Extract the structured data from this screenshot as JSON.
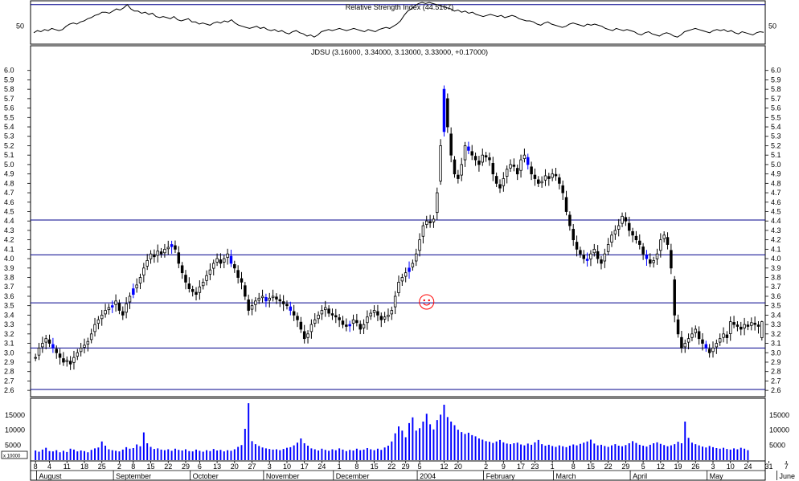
{
  "chart_data": {
    "type": "candlestick",
    "symbol": "JDSU",
    "title": "JDSU (3.16000, 3.34000, 3.13000, 3.33000, +0.17000)",
    "last_bar": {
      "open": 3.16,
      "high": 3.34,
      "low": 3.13,
      "close": 3.33,
      "change": 0.17
    },
    "colors": {
      "up": "#ffffff",
      "down": "#000000",
      "highlight": "#0000ff",
      "trendline": "#00008b",
      "smiley": "#ff0000",
      "volume": "#0000ff"
    },
    "rsi_panel": {
      "title": "Relative Strength Index (44.5167)",
      "value": 44.5167,
      "ref_label": "50",
      "ref_levels": [
        50,
        70
      ],
      "ylim": [
        35,
        72
      ],
      "series": [
        44,
        46,
        45,
        47,
        46,
        48,
        47,
        46,
        47,
        50,
        52,
        53,
        52,
        54,
        55,
        57,
        58,
        60,
        61,
        63,
        63,
        62,
        64,
        66,
        65,
        67,
        70,
        66,
        64,
        64,
        62,
        63,
        61,
        62,
        59,
        58,
        59,
        58,
        57,
        59,
        56,
        55,
        56,
        57,
        54,
        54,
        52,
        53,
        52,
        51,
        53,
        54,
        53,
        55,
        54,
        56,
        53,
        51,
        50,
        49,
        48,
        49,
        50,
        48,
        49,
        47,
        46,
        47,
        45,
        46,
        44,
        43,
        45,
        46,
        44,
        43,
        41,
        42,
        40,
        42,
        45,
        46,
        47,
        46,
        47,
        48,
        47,
        46,
        47,
        48,
        47,
        46,
        45,
        47,
        46,
        45,
        47,
        48,
        49,
        48,
        50,
        52,
        55,
        60,
        64,
        66,
        69,
        71,
        72,
        71,
        72,
        71,
        70,
        69,
        68,
        67,
        66,
        64,
        65,
        63,
        64,
        62,
        63,
        61,
        60,
        59,
        60,
        61,
        60,
        59,
        60,
        58,
        59,
        60,
        59,
        57,
        56,
        55,
        55,
        54,
        52,
        51,
        53,
        54,
        52,
        51,
        50,
        49,
        50,
        52,
        53,
        52,
        51,
        50,
        52,
        51,
        52,
        51,
        50,
        48,
        47,
        46,
        48,
        47,
        46,
        47,
        46,
        45,
        43,
        42,
        44,
        45,
        43,
        42,
        41,
        43,
        44,
        43,
        41,
        40,
        42,
        45,
        46,
        47,
        48,
        47,
        46,
        45,
        44,
        46,
        47,
        46,
        47,
        45,
        46,
        44,
        43,
        45,
        44,
        43,
        42,
        44,
        45,
        44.5
      ]
    },
    "price_panel": {
      "ylim": [
        2.55,
        6.1
      ],
      "y_ticks": [
        "2.6",
        "2.7",
        "2.8",
        "2.9",
        "3.0",
        "3.1",
        "3.2",
        "3.3",
        "3.4",
        "3.5",
        "3.6",
        "3.7",
        "3.8",
        "3.9",
        "4.0",
        "4.1",
        "4.2",
        "4.3",
        "4.4",
        "4.5",
        "4.6",
        "4.7",
        "4.8",
        "4.9",
        "5.0",
        "5.1",
        "5.2",
        "5.3",
        "5.4",
        "5.5",
        "5.6",
        "5.7",
        "5.8",
        "5.9",
        "6.0"
      ],
      "support_resistance_lines": [
        2.61,
        3.05,
        3.53,
        4.04,
        4.41
      ],
      "smiley_markers": [
        {
          "index": 112,
          "price": 3.54
        },
        {
          "index": 221,
          "price": 3.54
        }
      ],
      "closes": [
        2.95,
        3.05,
        3.1,
        3.15,
        3.1,
        3.05,
        3.0,
        2.95,
        2.9,
        2.92,
        2.88,
        2.95,
        3.0,
        3.05,
        3.08,
        3.12,
        3.2,
        3.3,
        3.35,
        3.4,
        3.45,
        3.48,
        3.5,
        3.55,
        3.45,
        3.4,
        3.52,
        3.6,
        3.68,
        3.72,
        3.8,
        3.9,
        3.98,
        4.05,
        4.02,
        4.08,
        4.05,
        4.1,
        4.12,
        4.15,
        4.1,
        3.95,
        3.85,
        3.75,
        3.68,
        3.65,
        3.62,
        3.7,
        3.75,
        3.82,
        3.88,
        3.95,
        4.0,
        3.95,
        4.0,
        4.05,
        3.95,
        3.9,
        3.8,
        3.75,
        3.6,
        3.45,
        3.5,
        3.55,
        3.58,
        3.6,
        3.55,
        3.58,
        3.6,
        3.57,
        3.55,
        3.52,
        3.5,
        3.45,
        3.4,
        3.35,
        3.25,
        3.15,
        3.2,
        3.3,
        3.35,
        3.4,
        3.45,
        3.48,
        3.42,
        3.4,
        3.38,
        3.35,
        3.3,
        3.28,
        3.3,
        3.35,
        3.32,
        3.25,
        3.3,
        3.38,
        3.42,
        3.45,
        3.4,
        3.35,
        3.38,
        3.4,
        3.45,
        3.6,
        3.75,
        3.8,
        3.85,
        3.9,
        3.95,
        4.05,
        4.2,
        4.35,
        4.4,
        4.38,
        4.42,
        4.7,
        5.2,
        5.8,
        5.4,
        5.1,
        4.9,
        4.85,
        5.0,
        5.2,
        5.15,
        5.1,
        5.05,
        5.0,
        5.1,
        5.08,
        5.05,
        4.9,
        4.8,
        4.75,
        4.85,
        4.95,
        5.0,
        4.98,
        4.9,
        5.05,
        5.1,
        5.0,
        4.9,
        4.85,
        4.8,
        4.82,
        4.88,
        4.85,
        4.9,
        4.88,
        4.8,
        4.7,
        4.5,
        4.35,
        4.2,
        4.1,
        4.05,
        4.0,
        3.98,
        4.05,
        4.1,
        4.0,
        3.95,
        4.05,
        4.15,
        4.25,
        4.3,
        4.35,
        4.45,
        4.4,
        4.3,
        4.25,
        4.2,
        4.15,
        4.05,
        4.0,
        3.95,
        3.98,
        4.05,
        4.2,
        4.25,
        4.15,
        3.9,
        3.4,
        3.2,
        3.05,
        3.1,
        3.15,
        3.2,
        3.25,
        3.15,
        3.1,
        3.05,
        3.0,
        3.05,
        3.1,
        3.15,
        3.2,
        3.16,
        3.33,
        3.3,
        3.28,
        3.25,
        3.3,
        3.28,
        3.32,
        3.3,
        3.28,
        3.33
      ]
    },
    "volume_panel": {
      "unit_label": "x 10000",
      "y_ticks": [
        "5000",
        "10000",
        "15000"
      ],
      "ylim": [
        0,
        20000
      ],
      "values": [
        3200,
        2800,
        3500,
        4100,
        3000,
        2900,
        3300,
        2600,
        3100,
        2700,
        3800,
        3500,
        2900,
        3200,
        3000,
        2600,
        3400,
        3900,
        4200,
        6200,
        4800,
        3600,
        3300,
        3100,
        2900,
        3500,
        4300,
        3800,
        4000,
        5200,
        4600,
        9200,
        5600,
        4400,
        3700,
        3900,
        3500,
        3300,
        3600,
        3100,
        3800,
        3400,
        3200,
        3600,
        3000,
        2900,
        3500,
        3100,
        2800,
        3300,
        3000,
        3700,
        3200,
        3400,
        2900,
        3300,
        3100,
        3600,
        4400,
        5000,
        10400,
        18900,
        6300,
        5300,
        4700,
        4200,
        3900,
        3700,
        3500,
        3600,
        3300,
        3700,
        4100,
        4300,
        4900,
        5800,
        7200,
        5600,
        4800,
        3900,
        3600,
        3200,
        3800,
        3400,
        3100,
        3600,
        3300,
        3900,
        3500,
        3000,
        3400,
        3200,
        3800,
        3300,
        3500,
        4000,
        3600,
        3300,
        3800,
        3400,
        4200,
        4800,
        6200,
        8900,
        11200,
        9800,
        7600,
        12300,
        14200,
        9800,
        10600,
        12800,
        15400,
        11900,
        10200,
        13300,
        15100,
        18400,
        14300,
        12800,
        11600,
        10100,
        9300,
        8700,
        9100,
        8300,
        7900,
        7200,
        6800,
        6300,
        6100,
        5700,
        6200,
        6700,
        5900,
        5500,
        5300,
        5600,
        5800,
        5200,
        4900,
        5500,
        5100,
        5900,
        6700,
        5300,
        4800,
        5100,
        4700,
        4400,
        4900,
        4600,
        4300,
        4800,
        5200,
        4900,
        5400,
        5800,
        6200,
        6800,
        5500,
        4900,
        5100,
        4700,
        4400,
        4900,
        5300,
        4800,
        4600,
        5000,
        5600,
        6300,
        5700,
        5100,
        4800,
        4500,
        5100,
        5600,
        5900,
        5400,
        5000,
        4600,
        4900,
        5300,
        6100,
        5600,
        12800,
        7400,
        5800,
        5300,
        4900,
        4500,
        4200,
        4700,
        4300,
        4000,
        3800,
        4100,
        3700,
        3500,
        3900,
        3600,
        4100,
        3800,
        3300
      ]
    },
    "x_axis": {
      "day_labels": [
        {
          "index": 0,
          "label": "8"
        },
        {
          "index": 4,
          "label": "4"
        },
        {
          "index": 9,
          "label": "11"
        },
        {
          "index": 14,
          "label": "18"
        },
        {
          "index": 19,
          "label": "25"
        },
        {
          "index": 24,
          "label": "2"
        },
        {
          "index": 28,
          "label": "8"
        },
        {
          "index": 33,
          "label": "15"
        },
        {
          "index": 38,
          "label": "22"
        },
        {
          "index": 43,
          "label": "29"
        },
        {
          "index": 47,
          "label": "6"
        },
        {
          "index": 52,
          "label": "13"
        },
        {
          "index": 57,
          "label": "20"
        },
        {
          "index": 62,
          "label": "27"
        },
        {
          "index": 67,
          "label": "3"
        },
        {
          "index": 72,
          "label": "10"
        },
        {
          "index": 77,
          "label": "17"
        },
        {
          "index": 82,
          "label": "24"
        },
        {
          "index": 87,
          "label": "1"
        },
        {
          "index": 92,
          "label": "8"
        },
        {
          "index": 97,
          "label": "15"
        },
        {
          "index": 102,
          "label": "22"
        },
        {
          "index": 106,
          "label": "29"
        },
        {
          "index": 110,
          "label": "5"
        },
        {
          "index": 117,
          "label": "12"
        },
        {
          "index": 121,
          "label": "20"
        },
        {
          "index": 129,
          "label": "2"
        },
        {
          "index": 134,
          "label": "9"
        },
        {
          "index": 139,
          "label": "17"
        },
        {
          "index": 143,
          "label": "23"
        },
        {
          "index": 148,
          "label": "1"
        },
        {
          "index": 154,
          "label": "8"
        },
        {
          "index": 159,
          "label": "15"
        },
        {
          "index": 164,
          "label": "22"
        },
        {
          "index": 169,
          "label": "29"
        },
        {
          "index": 174,
          "label": "5"
        },
        {
          "index": 179,
          "label": "12"
        },
        {
          "index": 184,
          "label": "19"
        },
        {
          "index": 189,
          "label": "26"
        },
        {
          "index": 194,
          "label": "3"
        },
        {
          "index": 199,
          "label": "10"
        },
        {
          "index": 204,
          "label": "24"
        },
        {
          "index": 210,
          "label": "31"
        },
        {
          "index": 215,
          "label": "7"
        }
      ],
      "month_labels": [
        {
          "index": 1,
          "label": "August"
        },
        {
          "index": 23,
          "label": "September"
        },
        {
          "index": 45,
          "label": "October"
        },
        {
          "index": 66,
          "label": "November"
        },
        {
          "index": 86,
          "label": "December"
        },
        {
          "index": 110,
          "label": "2004"
        },
        {
          "index": 129,
          "label": "February"
        },
        {
          "index": 149,
          "label": "March"
        },
        {
          "index": 171,
          "label": "April"
        },
        {
          "index": 193,
          "label": "May"
        },
        {
          "index": 213,
          "label": "June"
        }
      ]
    }
  }
}
